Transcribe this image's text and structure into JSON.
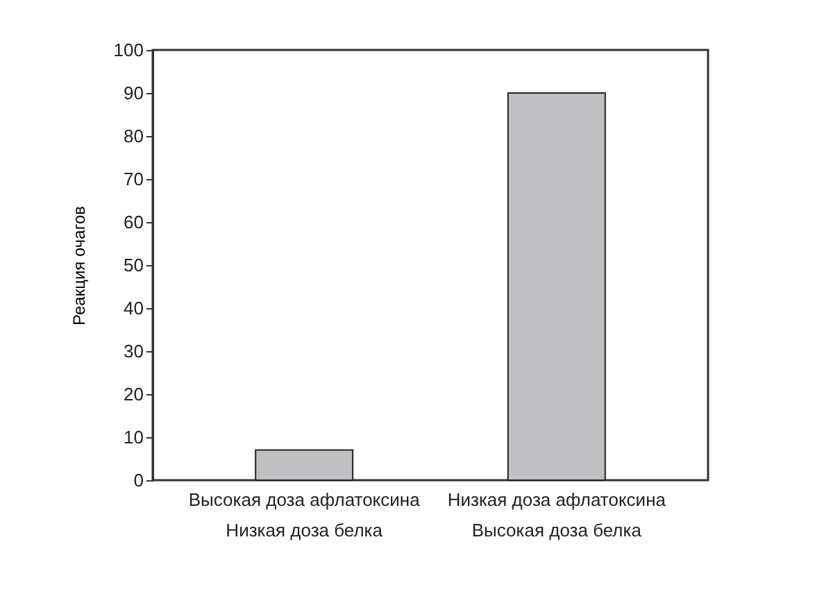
{
  "chart_data": {
    "type": "bar",
    "ylabel": "Реакция очагов",
    "categories": [
      "Высокая доза афлатоксина\nНизкая доза белка",
      "Низкая доза афлатоксина\nВысокая доза белка"
    ],
    "values": [
      7,
      90
    ],
    "color": "#c0c0c2",
    "ylim": [
      0,
      100
    ],
    "yticks": [
      0,
      10,
      20,
      30,
      40,
      50,
      60,
      70,
      80,
      90,
      100
    ],
    "grid": false
  }
}
